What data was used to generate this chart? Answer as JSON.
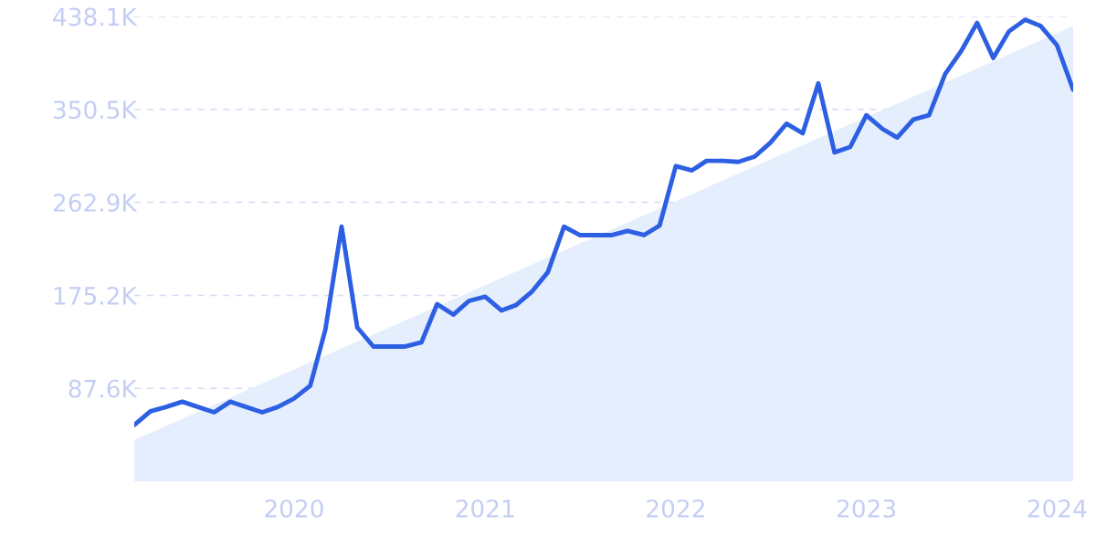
{
  "chart_data": {
    "type": "line",
    "x": [
      "2019-03",
      "2019-04",
      "2019-05",
      "2019-06",
      "2019-07",
      "2019-08",
      "2019-09",
      "2019-10",
      "2019-11",
      "2019-12",
      "2020-01",
      "2020-02",
      "2020-03",
      "2020-04",
      "2020-05",
      "2020-06",
      "2020-07",
      "2020-08",
      "2020-09",
      "2020-10",
      "2020-11",
      "2020-12",
      "2021-01",
      "2021-02",
      "2021-03",
      "2021-04",
      "2021-05",
      "2021-06",
      "2021-07",
      "2021-08",
      "2021-09",
      "2021-10",
      "2021-11",
      "2021-12",
      "2022-01",
      "2022-02",
      "2022-03",
      "2022-04",
      "2022-05",
      "2022-06",
      "2022-07",
      "2022-08",
      "2022-09",
      "2022-10",
      "2022-11",
      "2022-12",
      "2023-01",
      "2023-02",
      "2023-03",
      "2023-04",
      "2023-05",
      "2023-06",
      "2023-07",
      "2023-08",
      "2023-09",
      "2023-10",
      "2023-11",
      "2023-12",
      "2024-01",
      "2024-02"
    ],
    "series": [
      {
        "type": "area",
        "color": "#e4eefc",
        "x": [
          "2019-03",
          "2024-02"
        ],
        "values": [
          39000,
          429000
        ]
      },
      {
        "color": "#2d5fe3",
        "values": [
          53000,
          66000,
          70000,
          75000,
          70000,
          65000,
          75000,
          70000,
          65000,
          70000,
          78000,
          90000,
          143000,
          240000,
          145000,
          127000,
          127000,
          127000,
          131000,
          167000,
          157000,
          170000,
          174000,
          161000,
          166000,
          179000,
          197000,
          240000,
          232000,
          232000,
          232000,
          236000,
          232000,
          241000,
          297000,
          293000,
          302000,
          302000,
          301000,
          306000,
          319000,
          337000,
          328000,
          375000,
          310000,
          315000,
          345000,
          332000,
          324000,
          341000,
          345000,
          384000,
          405000,
          432000,
          399000,
          424000,
          435000,
          429000,
          411000,
          369000
        ]
      }
    ],
    "xlim": [
      "2019-03",
      "2024-02"
    ],
    "xticks": [
      "2020",
      "2021",
      "2022",
      "2023",
      "2024"
    ],
    "ylim": [
      0,
      438100
    ],
    "yticks": [
      {
        "value": 87600,
        "label": "87.6K"
      },
      {
        "value": 175200,
        "label": "175.2K"
      },
      {
        "value": 262900,
        "label": "262.9K"
      },
      {
        "value": 350500,
        "label": "350.5K"
      },
      {
        "value": 438100,
        "label": "438.1K"
      }
    ],
    "grid": "y",
    "line_style": "solid",
    "marker": "none"
  }
}
